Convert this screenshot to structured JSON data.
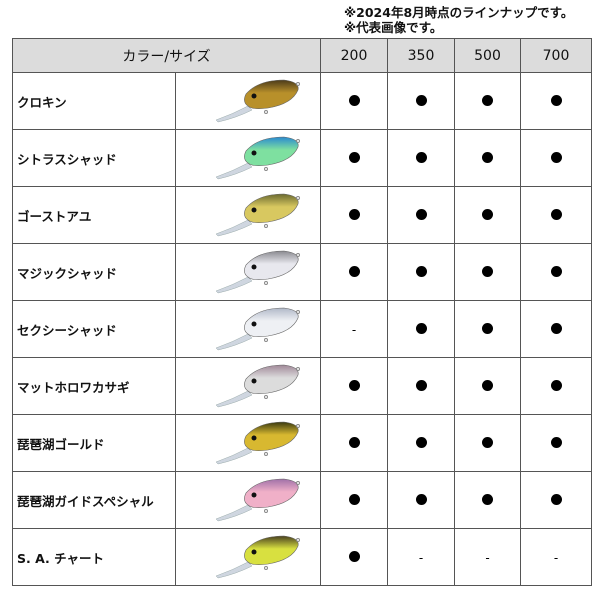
{
  "notes": [
    "※2024年8月時点のラインナップです。",
    "※代表画像です。"
  ],
  "header": {
    "color_size": "カラー/サイズ",
    "sizes": [
      "200",
      "350",
      "500",
      "700"
    ]
  },
  "rows": [
    {
      "name": "クロキン",
      "avail": [
        "●",
        "●",
        "●",
        "●"
      ],
      "colors": [
        "#4a3a1a",
        "#b8902a"
      ]
    },
    {
      "name": "シトラスシャッド",
      "avail": [
        "●",
        "●",
        "●",
        "●"
      ],
      "colors": [
        "#2a8ad0",
        "#7ee0a0"
      ]
    },
    {
      "name": "ゴーストアユ",
      "avail": [
        "●",
        "●",
        "●",
        "●"
      ],
      "colors": [
        "#6a6a30",
        "#d8c860"
      ]
    },
    {
      "name": "マジックシャッド",
      "avail": [
        "●",
        "●",
        "●",
        "●"
      ],
      "colors": [
        "#8a8a90",
        "#e8e8ee"
      ]
    },
    {
      "name": "セクシーシャッド",
      "avail": [
        "-",
        "●",
        "●",
        "●"
      ],
      "colors": [
        "#b0b8c8",
        "#eef0f4"
      ]
    },
    {
      "name": "マットホロワカサギ",
      "avail": [
        "●",
        "●",
        "●",
        "●"
      ],
      "colors": [
        "#a08898",
        "#dcdcdc"
      ]
    },
    {
      "name": "琵琶湖ゴールド",
      "avail": [
        "●",
        "●",
        "●",
        "●"
      ],
      "colors": [
        "#3a3a10",
        "#d8b830"
      ]
    },
    {
      "name": "琵琶湖ガイドスペシャル",
      "avail": [
        "●",
        "●",
        "●",
        "●"
      ],
      "colors": [
        "#a070a8",
        "#f0b0c8"
      ]
    },
    {
      "name": "S. A. チャート",
      "avail": [
        "●",
        "-",
        "-",
        "-"
      ],
      "colors": [
        "#4a4020",
        "#d8e040"
      ]
    }
  ]
}
